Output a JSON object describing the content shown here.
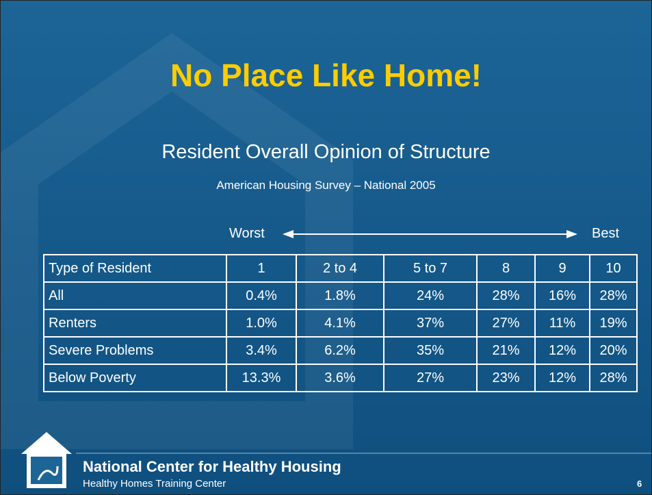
{
  "title": "No Place Like Home!",
  "subtitle": "Resident Overall Opinion of Structure",
  "source": "American Housing Survey – National 2005",
  "scale": {
    "worst": "Worst",
    "best": "Best"
  },
  "table": {
    "header": [
      "Type of Resident",
      "1",
      "2 to 4",
      "5 to 7",
      "8",
      "9",
      "10"
    ],
    "rows": [
      [
        "All",
        "0.4%",
        "1.8%",
        "24%",
        "28%",
        "16%",
        "28%"
      ],
      [
        "Renters",
        "1.0%",
        "4.1%",
        "37%",
        "27%",
        "11%",
        "19%"
      ],
      [
        "Severe Problems",
        "3.4%",
        "6.2%",
        "35%",
        "21%",
        "12%",
        "20%"
      ],
      [
        "Below Poverty",
        "13.3%",
        "3.6%",
        "27%",
        "23%",
        "12%",
        "28%"
      ]
    ]
  },
  "footer": {
    "org": "National Center for Healthy Housing",
    "center": "Healthy Homes Training Center",
    "page": "6"
  }
}
